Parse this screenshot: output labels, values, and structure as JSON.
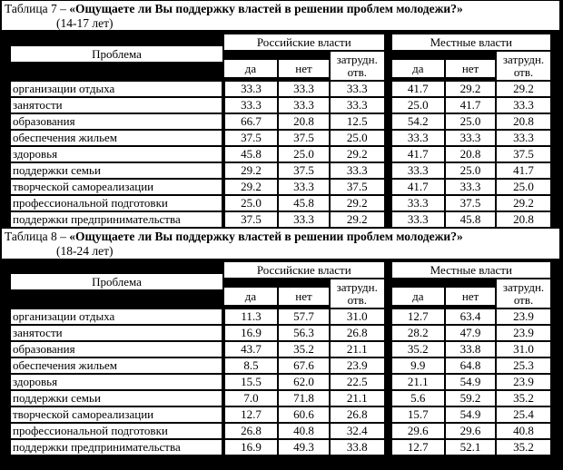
{
  "colors": {
    "page_background": "#000000",
    "cell_background": "#ffffff",
    "text": "#000000"
  },
  "tables": [
    {
      "caption_prefix": "Таблица 7 – ",
      "caption_title": "«Ощущаете ли Вы поддержку властей в решении проблем молодежи?»",
      "age_group": "(14-17 лет)",
      "problem_header": "Проблема",
      "group_headers": [
        "Российские власти",
        "Местные власти"
      ],
      "answer_headers": [
        "да",
        "нет",
        "затрудн. отв."
      ],
      "rows": [
        {
          "label": "организации отдыха",
          "values": [
            "33.3",
            "33.3",
            "33.3",
            "41.7",
            "29.2",
            "29.2"
          ]
        },
        {
          "label": "занятости",
          "values": [
            "33.3",
            "33.3",
            "33.3",
            "25.0",
            "41.7",
            "33.3"
          ]
        },
        {
          "label": "образования",
          "values": [
            "66.7",
            "20.8",
            "12.5",
            "54.2",
            "25.0",
            "20.8"
          ]
        },
        {
          "label": "обеспечения жильем",
          "values": [
            "37.5",
            "37.5",
            "25.0",
            "33.3",
            "33.3",
            "33.3"
          ]
        },
        {
          "label": "здоровья",
          "values": [
            "45.8",
            "25.0",
            "29.2",
            "41.7",
            "20.8",
            "37.5"
          ]
        },
        {
          "label": "поддержки семьи",
          "values": [
            "29.2",
            "37.5",
            "33.3",
            "33.3",
            "25.0",
            "41.7"
          ]
        },
        {
          "label": "творческой самореализации",
          "values": [
            "29.2",
            "33.3",
            "37.5",
            "41.7",
            "33.3",
            "25.0"
          ]
        },
        {
          "label": "профессиональной подготовки",
          "values": [
            "25.0",
            "45.8",
            "29.2",
            "33.3",
            "37.5",
            "29.2"
          ]
        },
        {
          "label": "поддержки предпринимательства",
          "values": [
            "37.5",
            "33.3",
            "29.2",
            "33.3",
            "45.8",
            "20.8"
          ]
        }
      ]
    },
    {
      "caption_prefix": "Таблица 8 – ",
      "caption_title": "«Ощущаете ли Вы поддержку властей в решении проблем молодежи?»",
      "age_group": "(18-24 лет)",
      "problem_header": "Проблема",
      "group_headers": [
        "Российские власти",
        "Местные власти"
      ],
      "answer_headers": [
        "да",
        "нет",
        "затрудн. отв."
      ],
      "rows": [
        {
          "label": "организации отдыха",
          "values": [
            "11.3",
            "57.7",
            "31.0",
            "12.7",
            "63.4",
            "23.9"
          ]
        },
        {
          "label": "занятости",
          "values": [
            "16.9",
            "56.3",
            "26.8",
            "28.2",
            "47.9",
            "23.9"
          ]
        },
        {
          "label": "образования",
          "values": [
            "43.7",
            "35.2",
            "21.1",
            "35.2",
            "33.8",
            "31.0"
          ]
        },
        {
          "label": "обеспечения жильем",
          "values": [
            "8.5",
            "67.6",
            "23.9",
            "9.9",
            "64.8",
            "25.3"
          ]
        },
        {
          "label": "здоровья",
          "values": [
            "15.5",
            "62.0",
            "22.5",
            "21.1",
            "54.9",
            "23.9"
          ]
        },
        {
          "label": "поддержки семьи",
          "values": [
            "7.0",
            "71.8",
            "21.1",
            "5.6",
            "59.2",
            "35.2"
          ]
        },
        {
          "label": "творческой самореализации",
          "values": [
            "12.7",
            "60.6",
            "26.8",
            "15.7",
            "54.9",
            "25.4"
          ]
        },
        {
          "label": "профессиональной подготовки",
          "values": [
            "26.8",
            "40.8",
            "32.4",
            "29.6",
            "29.6",
            "40.8"
          ]
        },
        {
          "label": "поддержки предпринимательства",
          "values": [
            "16.9",
            "49.3",
            "33.8",
            "12.7",
            "52.1",
            "35.2"
          ]
        }
      ]
    }
  ]
}
